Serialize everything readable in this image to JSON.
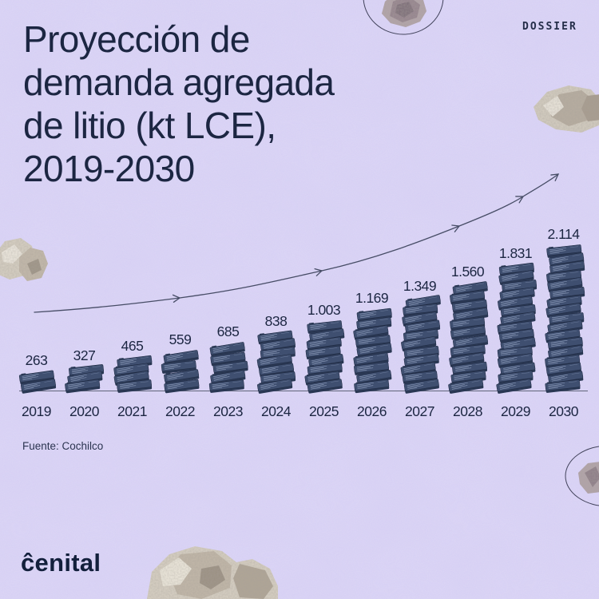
{
  "header": {
    "dossier_label": "DOSSIER",
    "title_lines": [
      "Proyección de",
      "demanda agregada",
      "de litio (kt LCE),",
      "2019-2030"
    ]
  },
  "chart_data": {
    "type": "bar",
    "title": "Proyección de demanda agregada de litio (kt LCE), 2019-2030",
    "unit": "kt LCE",
    "categories": [
      "2019",
      "2020",
      "2021",
      "2022",
      "2023",
      "2024",
      "2025",
      "2026",
      "2027",
      "2028",
      "2029",
      "2030"
    ],
    "values": [
      263,
      327,
      465,
      559,
      685,
      838,
      1003,
      1169,
      1349,
      1560,
      1831,
      2114
    ],
    "value_labels": [
      "263",
      "327",
      "465",
      "559",
      "685",
      "838",
      "1.003",
      "1.169",
      "1.349",
      "1.560",
      "1.831",
      "2.114"
    ],
    "source": "Fuente: Cochilco",
    "xlabel": "",
    "ylabel": "",
    "ylim": [
      0,
      2200
    ],
    "grid": false,
    "legend": "none",
    "bar_icon": "battery-stack",
    "annotations": [
      "curved growth arrow over bars"
    ]
  },
  "footer": {
    "logo_text": "ĉenital"
  },
  "colors": {
    "background": "#d4cdf3",
    "ink": "#1c2642",
    "battery_top": "#3f4f70",
    "battery_front": "#2a3854",
    "battery_lines": "#97a6c4",
    "arrow": "#474d66"
  }
}
